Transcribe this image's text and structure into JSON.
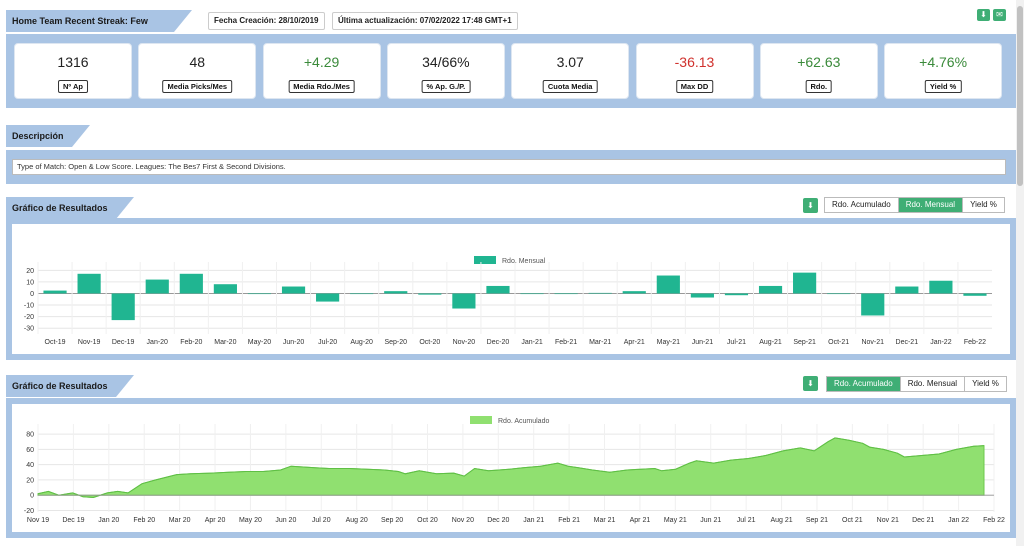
{
  "header": {
    "title": "Home Team Recent Streak: Few Draws",
    "created": "Fecha Creación: 28/10/2019",
    "updated": "Última actualización: 07/02/2022 17:48 GMT+1",
    "icons": [
      "download-icon",
      "mail-icon"
    ]
  },
  "stats": [
    {
      "value": "1316",
      "label": "Nº Ap",
      "color": "#222222"
    },
    {
      "value": "48",
      "label": "Media Picks/Mes",
      "color": "#222222"
    },
    {
      "value": "+4.29",
      "label": "Media Rdo./Mes",
      "color": "#3a8a3a"
    },
    {
      "value": "34/66%",
      "label": "% Ap. G./P.",
      "color": "#222222"
    },
    {
      "value": "3.07",
      "label": "Cuota Media",
      "color": "#222222"
    },
    {
      "value": "-36.13",
      "label": "Max DD",
      "color": "#d0312d"
    },
    {
      "value": "+62.63",
      "label": "Rdo.",
      "color": "#3a8a3a"
    },
    {
      "value": "+4.76%",
      "label": "Yield %",
      "color": "#3a8a3a"
    }
  ],
  "description": {
    "title": "Descripción",
    "text": "Type of Match: Open & Low Score. Leagues: The Bes7 First & Second Divisions."
  },
  "chart1": {
    "section_title": "Gráfico de Resultados",
    "buttons": [
      "Rdo. Acumulado",
      "Rdo. Mensual",
      "Yield %"
    ],
    "active": 1
  },
  "chart2": {
    "section_title": "Gráfico de Resultados",
    "buttons": [
      "Rdo. Acumulado",
      "Rdo. Mensual",
      "Yield %"
    ],
    "active": 0
  },
  "chart_data": [
    {
      "type": "bar",
      "legend": "Rdo. Mensual",
      "color": "#20b591",
      "categories": [
        "Oct-19",
        "Nov-19",
        "Dec-19",
        "Jan-20",
        "Feb-20",
        "Mar-20",
        "May-20",
        "Jun-20",
        "Jul-20",
        "Aug-20",
        "Sep-20",
        "Oct-20",
        "Nov-20",
        "Dec-20",
        "Jan-21",
        "Feb-21",
        "Mar-21",
        "Apr-21",
        "May-21",
        "Jun-21",
        "Jul-21",
        "Aug-21",
        "Sep-21",
        "Oct-21",
        "Nov-21",
        "Dec-21",
        "Jan-22",
        "Feb-22"
      ],
      "values": [
        2.5,
        17,
        -23,
        12,
        17,
        8,
        -0.5,
        6,
        -7,
        0,
        2,
        -1,
        -13,
        6.5,
        0,
        0,
        0.5,
        2,
        15.5,
        -3.5,
        -1.5,
        6.5,
        18,
        0,
        -19,
        6,
        11,
        -2
      ],
      "yticks": [
        20,
        10,
        0,
        -10,
        -20,
        -30
      ],
      "ylim": [
        -35,
        22
      ]
    },
    {
      "type": "area",
      "legend": "Rdo. Acumulado",
      "color": "#90e070",
      "xticks": [
        "Nov 19",
        "Dec 19",
        "Jan 20",
        "Feb 20",
        "Mar 20",
        "Apr 20",
        "May 20",
        "Jun 20",
        "Jul 20",
        "Aug 20",
        "Sep 20",
        "Oct 20",
        "Nov 20",
        "Dec 20",
        "Jan 21",
        "Feb 21",
        "Mar 21",
        "Apr 21",
        "May 21",
        "Jun 21",
        "Jul 21",
        "Aug 21",
        "Sep 21",
        "Oct 21",
        "Nov 21",
        "Dec 21",
        "Jan 22",
        "Feb 22"
      ],
      "x": [
        0,
        0.3,
        0.6,
        1.0,
        1.3,
        1.6,
        2.0,
        2.3,
        2.6,
        3.0,
        3.4,
        4.0,
        4.4,
        5.0,
        5.5,
        6.0,
        6.5,
        7.0,
        7.3,
        7.6,
        8.0,
        8.4,
        9.0,
        9.5,
        10.0,
        10.4,
        10.6,
        11.0,
        11.5,
        12.0,
        12.3,
        12.6,
        13.0,
        13.3,
        13.6,
        14.0,
        14.5,
        15.0,
        15.3,
        15.6,
        16.0,
        16.5,
        17.0,
        17.4,
        17.8,
        18.0,
        18.4,
        18.8,
        19.0,
        19.5,
        20.0,
        20.5,
        21.0,
        21.5,
        22.0,
        22.4,
        22.8,
        23.0,
        23.4,
        23.8,
        24.0,
        24.4,
        24.8,
        25.0,
        25.5,
        26.0,
        26.5,
        27.0,
        27.3
      ],
      "y": [
        2,
        5,
        0,
        3,
        -2,
        -3,
        3,
        5,
        3,
        15,
        20,
        27,
        28,
        29,
        30,
        31,
        31,
        33,
        38,
        37,
        36,
        35,
        35,
        34,
        33,
        31,
        28,
        32,
        28,
        29,
        25,
        35,
        32,
        33,
        34,
        36,
        38,
        42,
        38,
        36,
        33,
        30,
        33,
        34,
        35,
        32,
        34,
        42,
        45,
        42,
        46,
        48,
        52,
        58,
        62,
        58,
        70,
        75,
        72,
        68,
        63,
        60,
        55,
        50,
        52,
        54,
        60,
        64,
        65
      ],
      "yticks": [
        80,
        60,
        40,
        20,
        0,
        -20
      ],
      "ylim": [
        -22,
        88
      ]
    }
  ]
}
